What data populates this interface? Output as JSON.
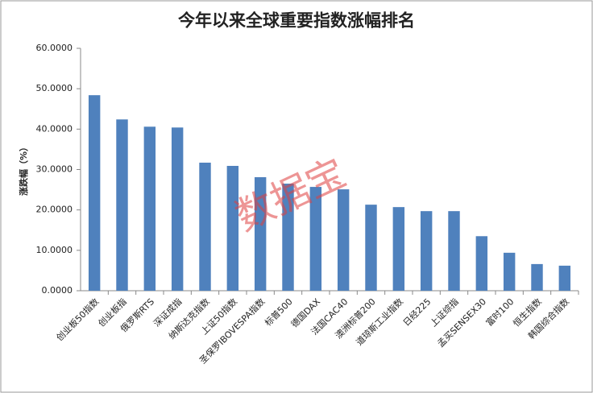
{
  "chart_data": {
    "type": "bar",
    "title": "今年以来全球重要指数涨幅排名",
    "y_label": "涨跌幅（%）",
    "watermark": "数据宝",
    "categories": [
      "创业板50指数",
      "创业板指",
      "俄罗斯RTS",
      "深证成指",
      "纳斯达克指数",
      "上证50指数",
      "圣保罗IBOVESPA指数",
      "标普500",
      "德国DAX",
      "法国CAC40",
      "澳洲标普200",
      "道琼斯工业指数",
      "日经225",
      "上证综指",
      "孟买SENSEX30",
      "富时100",
      "恒生指数",
      "韩国综合指数"
    ],
    "values": [
      48.4,
      42.4,
      40.6,
      40.4,
      31.7,
      30.9,
      28.1,
      26.5,
      25.7,
      25.1,
      21.3,
      20.7,
      19.7,
      19.7,
      13.5,
      9.4,
      6.6,
      6.2
    ],
    "color": "#4f81bd",
    "ylim": [
      0,
      60
    ],
    "yticks": [
      {
        "value": 0,
        "label": "0.0000"
      },
      {
        "value": 10,
        "label": "10.0000"
      },
      {
        "value": 20,
        "label": "20.0000"
      },
      {
        "value": 30,
        "label": "30.0000"
      },
      {
        "value": 40,
        "label": "40.0000"
      },
      {
        "value": 50,
        "label": "50.0000"
      },
      {
        "value": 60,
        "label": "60.0000"
      }
    ],
    "grid": false
  }
}
